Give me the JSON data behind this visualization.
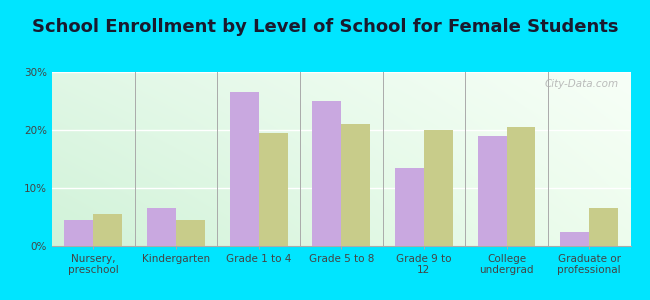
{
  "title": "School Enrollment by Level of School for Female Students",
  "categories": [
    "Nursery,\npreschool",
    "Kindergarten",
    "Grade 1 to 4",
    "Grade 5 to 8",
    "Grade 9 to\n12",
    "College\nundergrad",
    "Graduate or\nprofessional"
  ],
  "wenatchee": [
    4.5,
    6.5,
    26.5,
    25.0,
    13.5,
    19.0,
    2.5
  ],
  "washington": [
    5.5,
    4.5,
    19.5,
    21.0,
    20.0,
    20.5,
    6.5
  ],
  "wenatchee_color": "#c9a8e0",
  "washington_color": "#c8cc8a",
  "background_outer": "#00e5ff",
  "ylim": [
    0,
    30
  ],
  "yticks": [
    0,
    10,
    20,
    30
  ],
  "ytick_labels": [
    "0%",
    "10%",
    "20%",
    "30%"
  ],
  "bar_width": 0.35,
  "title_fontsize": 13,
  "tick_fontsize": 7.5,
  "legend_fontsize": 9,
  "watermark": "City-Data.com"
}
